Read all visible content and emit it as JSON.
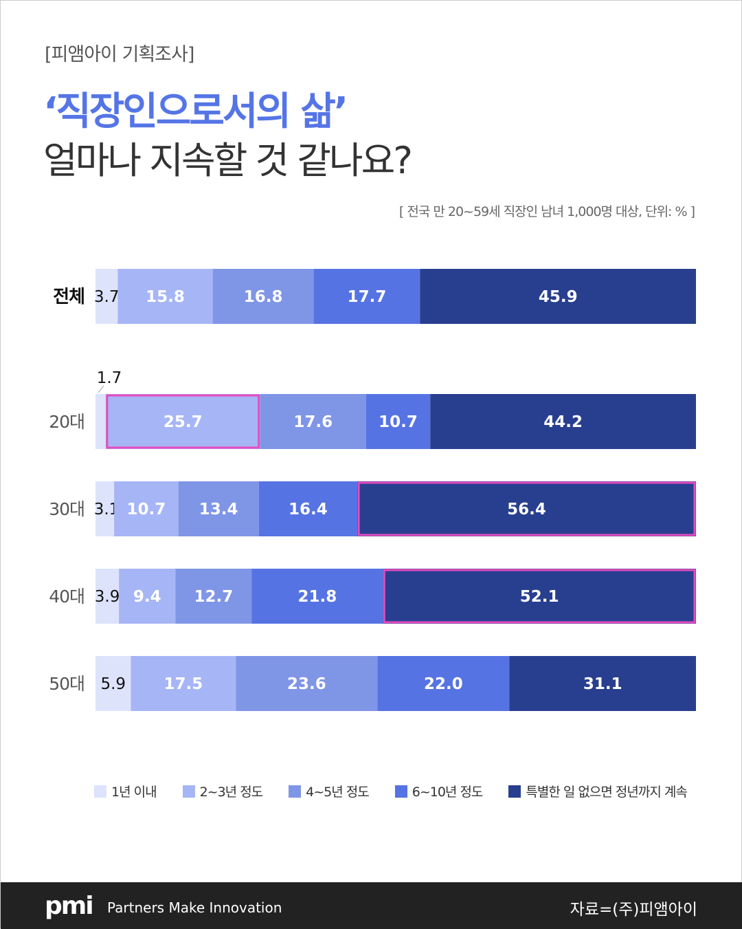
{
  "header": {
    "kicker": "[피앰아이 기획조사]",
    "title_line1": "‘직장인으로서의 삶’",
    "title_line2": "얼마나 지속할 것 같나요?",
    "note": "[ 전국 만 20~59세 직장인 남녀 1,000명 대상, 단위: % ]"
  },
  "chart_data": {
    "type": "bar",
    "orientation": "horizontal",
    "stacked": true,
    "unit": "%",
    "categories": [
      "전체",
      "20대",
      "30대",
      "40대",
      "50대"
    ],
    "series": [
      {
        "name": "1년 이내",
        "color": "#dde3fb",
        "values": [
          3.7,
          1.7,
          3.1,
          3.9,
          5.9
        ]
      },
      {
        "name": "2~3년 정도",
        "color": "#a6b5f5",
        "values": [
          15.8,
          25.7,
          10.7,
          9.4,
          17.5
        ]
      },
      {
        "name": "4~5년 정도",
        "color": "#7f95e6",
        "values": [
          16.8,
          17.6,
          13.4,
          12.7,
          23.6
        ]
      },
      {
        "name": "6~10년 정도",
        "color": "#5673e3",
        "values": [
          17.7,
          10.7,
          16.4,
          21.8,
          22.0
        ]
      },
      {
        "name": "특별한 일 없으면 정년까지 계속",
        "color": "#283f8f",
        "values": [
          45.9,
          44.2,
          56.4,
          52.1,
          31.1
        ]
      }
    ],
    "highlights": [
      {
        "category": "20대",
        "series": "2~3년 정도"
      },
      {
        "category": "30대",
        "series": "특별한 일 없으면 정년까지 계속"
      },
      {
        "category": "40대",
        "series": "특별한 일 없으면 정년까지 계속"
      }
    ],
    "highlight_color": "#e64bbf",
    "legend_position": "bottom"
  },
  "footer": {
    "logo": "pmi",
    "tagline": "Partners Make Innovation",
    "source": "자료=(주)피앰아이"
  }
}
